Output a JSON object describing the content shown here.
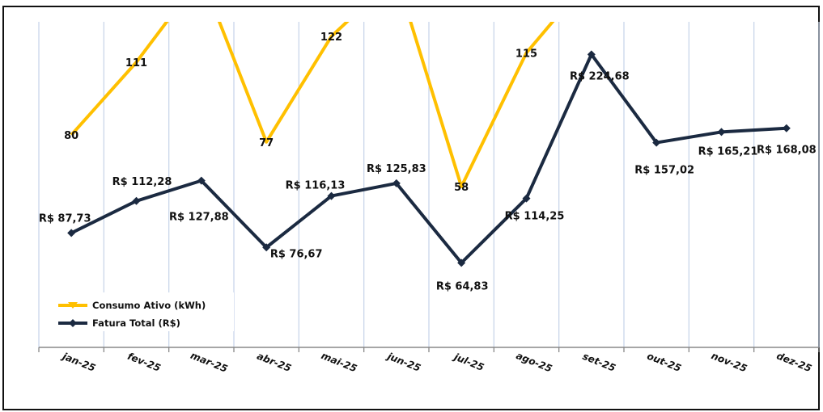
{
  "chart_data": {
    "type": "line",
    "title": "",
    "xlabel": "",
    "ylabel": "",
    "categories": [
      "jan-25",
      "fev-25",
      "mar-25",
      "abr-25",
      "mai-25",
      "jun-25",
      "jul-25",
      "ago-25",
      "set-25",
      "out-25",
      "nov-25",
      "dez-25"
    ],
    "series": [
      {
        "name": "Consumo Ativo (kWh)",
        "color": "#FFC000",
        "marker": "triangle-down",
        "values": [
          80,
          111,
          null,
          77,
          122,
          null,
          58,
          115,
          null,
          null,
          null,
          null
        ],
        "labels": [
          "80",
          "111",
          "",
          "77",
          "122",
          "",
          "58",
          "115",
          "",
          "",
          "",
          ""
        ]
      },
      {
        "name": "Fatura Total (R$)",
        "color": "#1B2A41",
        "marker": "diamond",
        "values": [
          87.73,
          112.28,
          127.88,
          76.67,
          116.13,
          125.83,
          64.83,
          114.25,
          224.68,
          157.02,
          165.21,
          168.08
        ],
        "labels": [
          "R$ 87,73",
          "R$ 112,28",
          "R$ 127,88",
          "R$ 76,67",
          "R$ 116,13",
          "R$ 125,83",
          "R$ 64,83",
          "R$ 114,25",
          "R$ 224,68",
          "R$ 157,02",
          "R$ 165,21",
          "R$ 168,08"
        ]
      }
    ],
    "grid": "vertical",
    "legend": "bottom-left"
  }
}
